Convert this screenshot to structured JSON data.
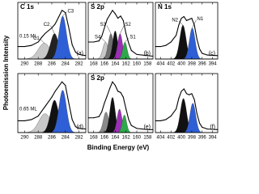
{
  "figure": {
    "xlabel": "Binding Energy (eV)",
    "ylabel": "Photoemission Intensity"
  },
  "chart_data": [
    {
      "type": "line",
      "title": "C 1s",
      "panel": "(a)",
      "annotation": "0.15 ML",
      "x": [
        291,
        290,
        289,
        288,
        287.5,
        287,
        286.5,
        286,
        285.5,
        285,
        284.5,
        284,
        283.5,
        283,
        282.5,
        282,
        281
      ],
      "values": [
        0.22,
        0.22,
        0.24,
        0.3,
        0.38,
        0.45,
        0.5,
        0.55,
        0.62,
        0.74,
        0.86,
        0.82,
        0.55,
        0.25,
        0.12,
        0.08,
        0.06
      ],
      "xlim": [
        291,
        281
      ],
      "xticks": [
        290,
        288,
        286,
        284,
        282
      ],
      "ylim": [
        0,
        1
      ],
      "peaks": [
        {
          "name": "C1",
          "color": "#c8c8c8",
          "center": 287.1,
          "height": 0.28,
          "width": 0.9
        },
        {
          "name": "C2",
          "color": "#222222",
          "center": 285.6,
          "height": 0.45,
          "width": 0.6
        },
        {
          "name": "C3",
          "color": "#2f5fd6",
          "center": 284.4,
          "height": 0.76,
          "width": 0.55
        }
      ]
    },
    {
      "type": "line",
      "title": "S 2p",
      "panel": "(b)",
      "x": [
        169,
        168,
        167,
        166.5,
        166,
        165.5,
        165,
        164.5,
        164,
        163.5,
        163,
        162.5,
        162,
        161.5,
        161,
        160,
        158,
        157
      ],
      "values": [
        0.3,
        0.3,
        0.32,
        0.4,
        0.55,
        0.7,
        0.78,
        0.86,
        0.8,
        0.72,
        0.76,
        0.68,
        0.45,
        0.28,
        0.15,
        0.08,
        0.06,
        0.05
      ],
      "xlim": [
        169,
        157
      ],
      "xticks": [
        168,
        166,
        164,
        162,
        160,
        158
      ],
      "ylim": [
        0,
        1
      ],
      "peaks": [
        {
          "name": "S4",
          "color": "#c8c8c8",
          "center": 165.8,
          "height": 0.3,
          "width": 0.5
        },
        {
          "name": "S3",
          "color": "#6e6e6e",
          "center": 164.8,
          "height": 0.45,
          "width": 0.5
        },
        {
          "color": "#111111",
          "center": 164.0,
          "height": 0.5,
          "width": 0.45
        },
        {
          "name": "S2",
          "color": "#9b2fb5",
          "center": 163.1,
          "height": 0.45,
          "width": 0.45
        },
        {
          "name": "S1",
          "color": "#2ea84a",
          "center": 162.2,
          "height": 0.3,
          "width": 0.4
        }
      ]
    },
    {
      "type": "line",
      "title": "N 1s",
      "panel": "(c)",
      "x": [
        405,
        404,
        403,
        402,
        401,
        400.5,
        400,
        399.5,
        399,
        398.5,
        398,
        397.5,
        397,
        396.5,
        396,
        395,
        393
      ],
      "values": [
        0.22,
        0.22,
        0.24,
        0.3,
        0.42,
        0.6,
        0.72,
        0.75,
        0.68,
        0.7,
        0.72,
        0.6,
        0.35,
        0.18,
        0.1,
        0.07,
        0.06
      ],
      "xlim": [
        405,
        393
      ],
      "xticks": [
        404,
        402,
        400,
        398,
        396,
        394
      ],
      "ylim": [
        0,
        1
      ],
      "peaks": [
        {
          "name": "N2",
          "color": "#111111",
          "center": 399.7,
          "height": 0.6,
          "width": 0.6
        },
        {
          "name": "N1",
          "color": "#2f5fd6",
          "center": 397.9,
          "height": 0.55,
          "width": 0.55
        }
      ]
    },
    {
      "type": "line",
      "panel": "(d)",
      "annotation": "0.65 ML",
      "x": [
        291,
        290,
        289,
        288,
        287.5,
        287,
        286.5,
        286,
        285.5,
        285,
        284.5,
        284,
        283.5,
        283,
        282.5,
        282,
        281
      ],
      "values": [
        0.2,
        0.2,
        0.22,
        0.28,
        0.36,
        0.44,
        0.52,
        0.6,
        0.7,
        0.78,
        0.86,
        0.8,
        0.5,
        0.22,
        0.1,
        0.07,
        0.06
      ],
      "xlim": [
        291,
        281
      ],
      "xticks": [
        290,
        288,
        286,
        284,
        282
      ],
      "ylim": [
        0,
        1
      ],
      "peaks": [
        {
          "color": "#c8c8c8",
          "center": 287.0,
          "height": 0.32,
          "width": 0.9
        },
        {
          "color": "#111111",
          "center": 285.6,
          "height": 0.55,
          "width": 0.6
        },
        {
          "color": "#2f5fd6",
          "center": 284.4,
          "height": 0.72,
          "width": 0.55
        }
      ]
    },
    {
      "type": "line",
      "title": "S 2p",
      "panel": "(e)",
      "x": [
        169,
        168,
        167,
        166.5,
        166,
        165.5,
        165,
        164.5,
        164,
        163.5,
        163,
        162.5,
        162,
        161.5,
        161,
        160,
        158,
        157
      ],
      "values": [
        0.25,
        0.25,
        0.27,
        0.35,
        0.5,
        0.62,
        0.75,
        0.86,
        0.8,
        0.7,
        0.68,
        0.6,
        0.4,
        0.22,
        0.12,
        0.07,
        0.05,
        0.05
      ],
      "xlim": [
        169,
        157
      ],
      "xticks": [
        168,
        166,
        164,
        162,
        160,
        158
      ],
      "ylim": [
        0,
        1
      ],
      "peaks": [
        {
          "color": "#8a8a8a",
          "center": 165.7,
          "height": 0.35,
          "width": 0.5
        },
        {
          "color": "#111111",
          "center": 164.5,
          "height": 0.6,
          "width": 0.5
        },
        {
          "color": "#9b2fb5",
          "center": 163.2,
          "height": 0.4,
          "width": 0.45
        },
        {
          "color": "#2ea84a",
          "center": 162.3,
          "height": 0.3,
          "width": 0.4
        }
      ]
    },
    {
      "type": "line",
      "panel": "(f)",
      "x": [
        405,
        404,
        403,
        402,
        401,
        400.5,
        400,
        399.5,
        399,
        398.5,
        398,
        397.5,
        397,
        396.5,
        396,
        395,
        393
      ],
      "values": [
        0.2,
        0.2,
        0.22,
        0.28,
        0.4,
        0.58,
        0.7,
        0.74,
        0.66,
        0.64,
        0.66,
        0.56,
        0.32,
        0.16,
        0.09,
        0.06,
        0.05
      ],
      "xlim": [
        405,
        393
      ],
      "xticks": [
        404,
        402,
        400,
        398,
        396,
        394
      ],
      "ylim": [
        0,
        1
      ],
      "peaks": [
        {
          "color": "#111111",
          "center": 399.6,
          "height": 0.58,
          "width": 0.6
        },
        {
          "color": "#2f5fd6",
          "center": 397.8,
          "height": 0.5,
          "width": 0.55
        }
      ]
    }
  ]
}
